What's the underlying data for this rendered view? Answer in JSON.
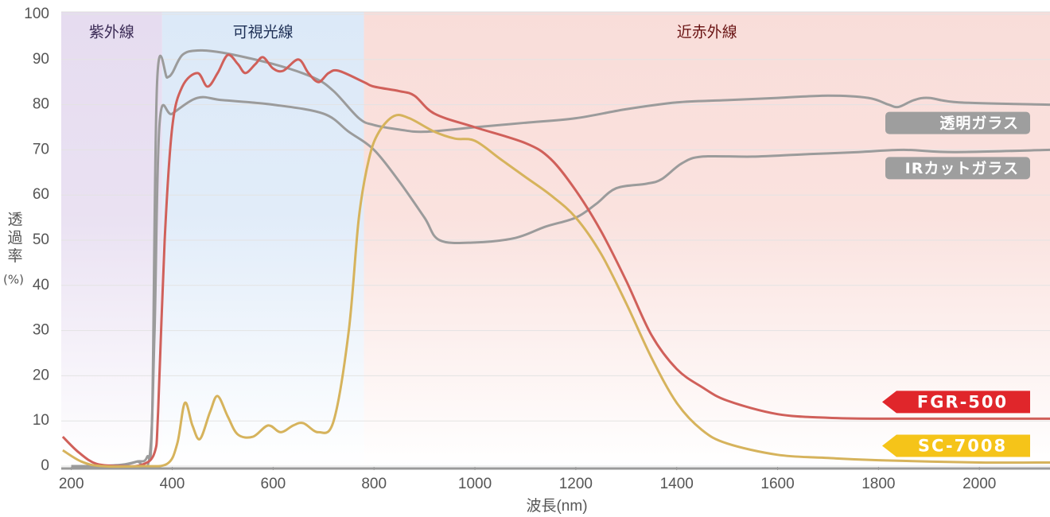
{
  "chart_data": {
    "type": "line",
    "x_label": "波長(nm)",
    "y_label": "透過率",
    "y_unit": "(%)",
    "xlim": [
      180,
      2140
    ],
    "ylim": [
      0,
      100
    ],
    "xticks": [
      200,
      400,
      600,
      800,
      1000,
      1200,
      1400,
      1600,
      1800,
      2000
    ],
    "yticks": [
      0,
      10,
      20,
      30,
      40,
      50,
      60,
      70,
      80,
      90,
      100
    ],
    "grid": true,
    "regions": [
      {
        "label": "紫外線",
        "range": [
          180,
          380
        ],
        "color": "#e6dcf0",
        "text_color": "#3a2a55"
      },
      {
        "label": "可視光線",
        "range": [
          380,
          780
        ],
        "color": "#dce9f8",
        "text_color": "#1d2f55"
      },
      {
        "label": "近赤外線",
        "range": [
          780,
          2140
        ],
        "color": "#f9ddd9",
        "text_color": "#6a1414"
      }
    ],
    "series": [
      {
        "name": "透明ガラス",
        "color": "#9b9b9b",
        "tag_color": "#9e9e9e",
        "tag": "box",
        "x": [
          200,
          250,
          300,
          330,
          350,
          360,
          370,
          390,
          400,
          420,
          450,
          500,
          600,
          680,
          720,
          770,
          800,
          850,
          900,
          1000,
          1100,
          1200,
          1300,
          1400,
          1500,
          1600,
          1700,
          1780,
          1820,
          1840,
          1870,
          1900,
          1960,
          2140
        ],
        "values": [
          0,
          0,
          0.2,
          1,
          2,
          10,
          85,
          86,
          87,
          91,
          92,
          91.5,
          89,
          86,
          83,
          77,
          75.5,
          74.5,
          74,
          75,
          76,
          77,
          79,
          80.5,
          81,
          81.5,
          82,
          81.5,
          80,
          79.5,
          81,
          81.5,
          80.5,
          80
        ]
      },
      {
        "name": "IRカットガラス",
        "color": "#9b9b9b",
        "tag_color": "#9e9e9e",
        "tag": "box",
        "x": [
          200,
          250,
          300,
          330,
          355,
          365,
          375,
          400,
          450,
          500,
          600,
          700,
          750,
          800,
          850,
          900,
          930,
          1000,
          1080,
          1140,
          1200,
          1240,
          1280,
          1340,
          1370,
          1410,
          1450,
          1550,
          1650,
          1760,
          1850,
          1950,
          2140
        ],
        "values": [
          0,
          0,
          0.3,
          1,
          2,
          30,
          76,
          78,
          81.5,
          81,
          80,
          78,
          74,
          70,
          63,
          55,
          50,
          49.5,
          50.5,
          53,
          55,
          58,
          61.5,
          62.5,
          63.5,
          67,
          68.5,
          68.5,
          69,
          69.5,
          70,
          69.5,
          70
        ]
      },
      {
        "name": "FGR-500",
        "color": "#d0605a",
        "tag_color": "#e0262b",
        "tag": "arrow",
        "x": [
          183,
          215,
          250,
          300,
          340,
          365,
          372,
          385,
          400,
          420,
          450,
          470,
          490,
          510,
          530,
          545,
          565,
          580,
          600,
          620,
          650,
          670,
          690,
          710,
          730,
          780,
          800,
          850,
          880,
          920,
          1000,
          1100,
          1150,
          1200,
          1250,
          1300,
          1350,
          1400,
          1450,
          1500,
          1600,
          1700,
          1800,
          2000,
          2140
        ],
        "values": [
          6.5,
          3,
          0.5,
          0,
          0.3,
          3,
          12,
          50,
          75,
          84,
          87,
          84,
          87,
          91,
          89,
          87,
          89,
          90.5,
          88,
          87.5,
          90,
          87,
          85,
          87,
          87.5,
          85,
          84,
          83,
          82,
          78,
          75,
          71.5,
          68,
          61,
          52,
          41,
          29,
          21.5,
          17.5,
          14.5,
          11.5,
          10.7,
          10.5,
          10.5,
          10.5
        ]
      },
      {
        "name": "SC-7008",
        "color": "#d6b35c",
        "tag_color": "#f5c419",
        "tag": "arrow",
        "x": [
          183,
          220,
          260,
          340,
          390,
          410,
          425,
          440,
          455,
          475,
          490,
          510,
          530,
          560,
          590,
          615,
          640,
          660,
          690,
          720,
          750,
          770,
          790,
          810,
          840,
          870,
          920,
          960,
          1000,
          1050,
          1100,
          1150,
          1200,
          1250,
          1300,
          1350,
          1400,
          1450,
          1500,
          1600,
          1700,
          1800,
          2000,
          2140
        ],
        "values": [
          3.5,
          1,
          0,
          0,
          0.5,
          5,
          14,
          9,
          6,
          12,
          15.5,
          11,
          7,
          6.5,
          9,
          7.5,
          9,
          9.5,
          7.5,
          10,
          30,
          55,
          68,
          74,
          77.5,
          77,
          74,
          72.5,
          72,
          68,
          64,
          60,
          55,
          47,
          36,
          24,
          14,
          8,
          5,
          2.5,
          1.8,
          1.3,
          0.8,
          0.8
        ]
      }
    ]
  }
}
